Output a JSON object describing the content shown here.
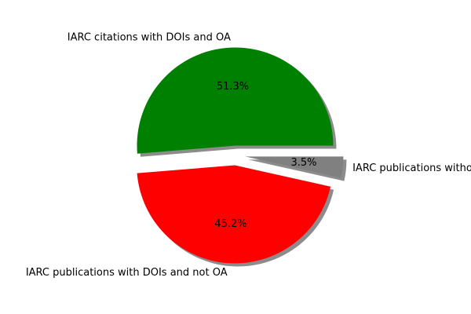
{
  "chart_data": {
    "type": "pie",
    "slices": [
      {
        "label": "IARC citations with DOIs and OA",
        "value": 51.3,
        "pct_label": "51.3%",
        "color": "#008000",
        "explode": 0.1
      },
      {
        "label": "IARC publications with DOIs and not OA",
        "value": 45.2,
        "pct_label": "45.2%",
        "color": "#ff0000",
        "explode": 0.1
      },
      {
        "label": "IARC publications without DOIs",
        "value": 3.5,
        "pct_label": "3.5%",
        "color": "#808080",
        "explode": 0.1
      }
    ],
    "start_angle_deg": 0,
    "shadow": true
  }
}
